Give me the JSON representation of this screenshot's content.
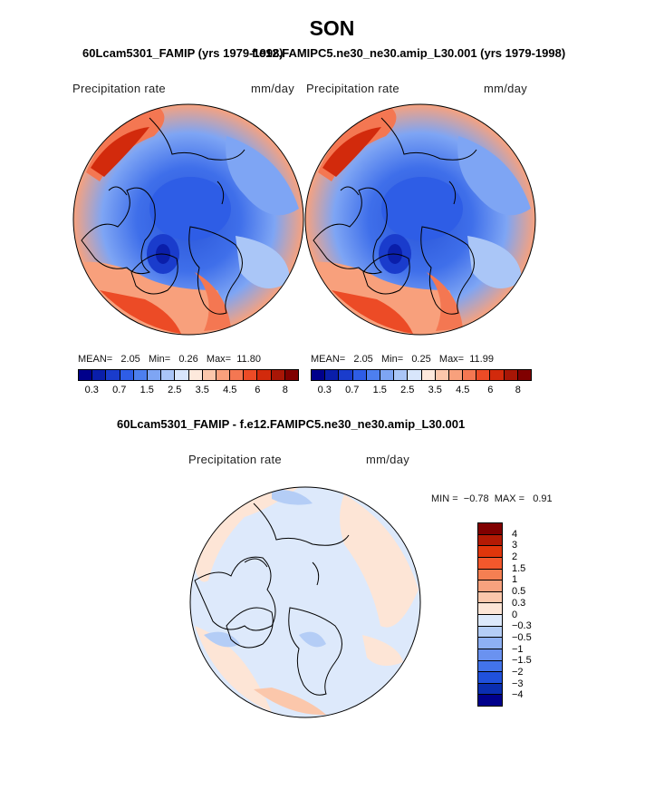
{
  "season": "SON",
  "top_left": {
    "title": "60Lcam5301_FAMIP (yrs 1979-1998)",
    "variable": "Precipitation rate",
    "units": "mm/day",
    "mean_label": "MEAN=",
    "mean": "2.05",
    "min_label": "Min=",
    "min": "0.26",
    "max_label": "Max=",
    "max": "11.80"
  },
  "top_right": {
    "title": "f.e12.FAMIPC5.ne30_ne30.amip_L30.001 (yrs 1979-1998)",
    "variable": "Precipitation rate",
    "units": "mm/day",
    "mean_label": "MEAN=",
    "mean": "2.05",
    "min_label": "Min=",
    "min": "0.25",
    "max_label": "Max=",
    "max": "11.99"
  },
  "bottom": {
    "title": "60Lcam5301_FAMIP - f.e12.FAMIPC5.ne30_ne30.amip_L30.001",
    "variable": "Precipitation rate",
    "units": "mm/day",
    "min_label": "MIN =",
    "min": "−0.78",
    "max_label": "MAX =",
    "max": "0.91"
  },
  "abs_colorbar": {
    "colors": [
      "#00008b",
      "#0a1eaa",
      "#1a3ccc",
      "#2e5de6",
      "#4d7fef",
      "#7ea5f4",
      "#aac6f7",
      "#d8e6fb",
      "#fde9dc",
      "#fbc7ab",
      "#f8a07c",
      "#f47752",
      "#ec4b26",
      "#d22a0c",
      "#a81606",
      "#800000"
    ],
    "labels": [
      "0.3",
      "0.7",
      "1.5",
      "2.5",
      "3.5",
      "4.5",
      "6",
      "8"
    ]
  },
  "diff_colorbar": {
    "colors": [
      "#800000",
      "#b31a04",
      "#e0360b",
      "#f3582c",
      "#f57f52",
      "#f7a27e",
      "#fbc7ab",
      "#fde5d6",
      "#dde9fb",
      "#b4cdf6",
      "#8eb0f4",
      "#6a92f0",
      "#4273ea",
      "#2051dc",
      "#0a2eb0",
      "#00008b"
    ],
    "labels": [
      "4",
      "3",
      "2",
      "1.5",
      "1",
      "0.5",
      "0.3",
      "0",
      "−0.3",
      "−0.5",
      "−1",
      "−1.5",
      "−2",
      "−3",
      "−4"
    ]
  }
}
